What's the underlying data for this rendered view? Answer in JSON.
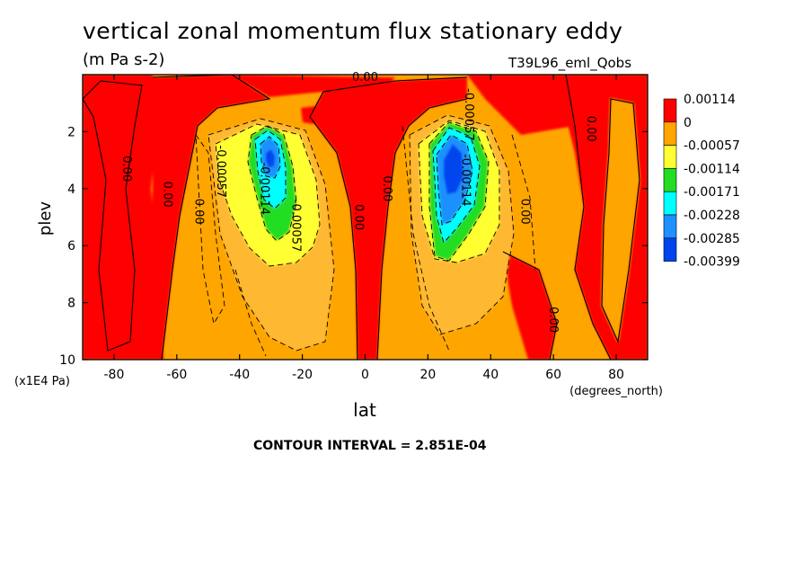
{
  "header": {
    "title": "vertical zonal momentum flux stationary eddy",
    "units": "(m Pa s-2)",
    "dataset": "T39L96_eml_Qobs"
  },
  "footer": {
    "contour_note": "CONTOUR INTERVAL = 2.851E-04"
  },
  "chart_data": {
    "type": "heatmap",
    "title": "vertical zonal momentum flux stationary eddy",
    "subtitle": "(m Pa s-2)",
    "xlabel": "lat",
    "xunits": "(degrees_north)",
    "ylabel": "plev",
    "yunits": "(x1E4 Pa)",
    "xlim": [
      -90,
      90
    ],
    "ylim": [
      10,
      0
    ],
    "x_ticks": [
      "-80",
      "-60",
      "-40",
      "-20",
      "0",
      "20",
      "40",
      "60",
      "80"
    ],
    "y_ticks": [
      "2",
      "4",
      "6",
      "8",
      "10"
    ],
    "contour_interval": "2.851E-04",
    "legend": {
      "placement": "right",
      "colors": [
        "#ff0000",
        "#ffa500",
        "#ffff33",
        "#22dd22",
        "#00ffff",
        "#1e90ff",
        "#0044ee"
      ],
      "labels": [
        "0.00114",
        "0",
        "-0.00057",
        "-0.00114",
        "-0.00171",
        "-0.00228",
        "-0.00285",
        "-0.00399"
      ]
    },
    "contour_labels": [
      {
        "lat": -76,
        "plev": 3.3,
        "text": "0.00"
      },
      {
        "lat": -63,
        "plev": 4.2,
        "text": "0.00"
      },
      {
        "lat": -53,
        "plev": 4.8,
        "text": "0.00"
      },
      {
        "lat": -46,
        "plev": 3.4,
        "text": "-0.00057"
      },
      {
        "lat": -32,
        "plev": 4.0,
        "text": "-0.00114"
      },
      {
        "lat": -22,
        "plev": 5.3,
        "text": "-0.00057"
      },
      {
        "lat": -2,
        "plev": 5.0,
        "text": "0.00"
      },
      {
        "lat": 7,
        "plev": 4.0,
        "text": "0.00"
      },
      {
        "lat": 0,
        "plev": 0.1,
        "text": "0.00"
      },
      {
        "lat": 33,
        "plev": 1.4,
        "text": "-0.00057"
      },
      {
        "lat": 32,
        "plev": 3.7,
        "text": "-0.00114"
      },
      {
        "lat": 51,
        "plev": 4.8,
        "text": "0.00"
      },
      {
        "lat": 72,
        "plev": 1.9,
        "text": "0.00"
      },
      {
        "lat": 60,
        "plev": 8.6,
        "text": "0.00"
      }
    ],
    "features": [
      {
        "lat": -29,
        "plev": 3.0,
        "value": -0.0029
      },
      {
        "lat": 28,
        "plev": 3.2,
        "value": -0.0035
      }
    ],
    "grid": false
  }
}
